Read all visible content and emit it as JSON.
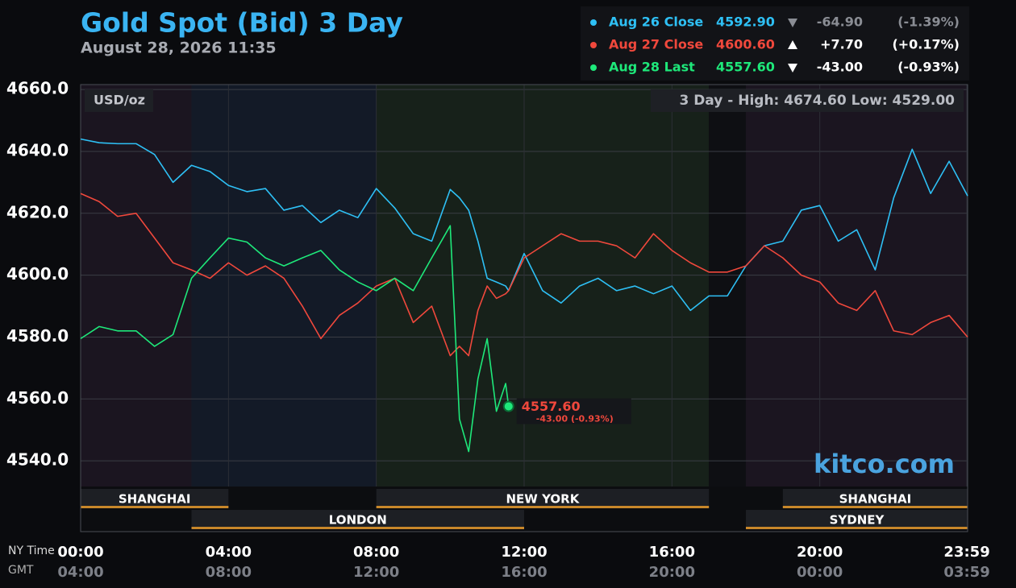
{
  "chart_data": {
    "type": "line",
    "title": "Gold Spot (Bid) 3 Day",
    "subtitle": "August 28, 2026 11:35",
    "unit_label": "USD/oz",
    "range_label": "3 Day - High: 4674.60  Low: 4529.00",
    "brand": "kitco.com",
    "x_label": "NY Time",
    "x2_label": "GMT",
    "x": [
      0,
      0.5,
      1,
      1.5,
      2,
      2.5,
      3,
      3.5,
      4,
      4.5,
      5,
      5.5,
      6,
      6.5,
      7,
      7.5,
      8,
      8.5,
      9,
      9.5,
      10,
      10.25,
      10.5,
      10.75,
      11,
      11.25,
      11.5,
      11.58,
      12,
      12.5,
      13,
      13.5,
      14,
      14.5,
      15,
      15.5,
      16,
      16.5,
      17,
      17.5,
      18,
      18.5,
      19,
      19.5,
      20,
      20.5,
      21,
      21.5,
      22,
      22.5,
      23,
      23.5,
      24
    ],
    "xlim": [
      0,
      24
    ],
    "xticks": [
      {
        "value": 0,
        "label": "00:00"
      },
      {
        "value": 4,
        "label": "04:00"
      },
      {
        "value": 8,
        "label": "08:00"
      },
      {
        "value": 12,
        "label": "12:00"
      },
      {
        "value": 16,
        "label": "16:00"
      },
      {
        "value": 20,
        "label": "20:00"
      },
      {
        "value": 23.98,
        "label": "23:59"
      }
    ],
    "gmt_labels": [
      "04:00",
      "08:00",
      "12:00",
      "16:00",
      "20:00",
      "00:00",
      "03:59"
    ],
    "ylim": [
      4531.7,
      4661.6
    ],
    "yticks": [
      {
        "value": 4540,
        "label": "4540.0"
      },
      {
        "value": 4560,
        "label": "4560.0"
      },
      {
        "value": 4580,
        "label": "4580.0"
      },
      {
        "value": 4600,
        "label": "4600.0"
      },
      {
        "value": 4620,
        "label": "4620.0"
      },
      {
        "value": 4640,
        "label": "4640.0"
      },
      {
        "value": 4660,
        "label": "4660.0"
      }
    ],
    "grid": true,
    "zones": [
      {
        "start": 0,
        "end": 3,
        "color": "#1b1520"
      },
      {
        "start": 3,
        "end": 8,
        "color": "#131a27"
      },
      {
        "start": 8,
        "end": 17,
        "color": "#17211a"
      },
      {
        "start": 17,
        "end": 18,
        "color": "#0e0f13"
      },
      {
        "start": 18,
        "end": 24,
        "color": "#1b1520"
      }
    ],
    "sessions_top": [
      {
        "name": "SHANGHAI",
        "start": 0,
        "end": 4
      },
      {
        "name": "NEW YORK",
        "start": 8,
        "end": 17
      },
      {
        "name": "SHANGHAI",
        "start": 19,
        "end": 24
      }
    ],
    "sessions_bottom": [
      {
        "name": "LONDON",
        "start": 3,
        "end": 12
      },
      {
        "name": "SYDNEY",
        "start": 18,
        "end": 24
      }
    ],
    "series": [
      {
        "name": "Aug 26 Close",
        "color": "#2ec0f5",
        "price": "4592.90",
        "change": "-64.90",
        "percent": "(-1.39%)",
        "values": [
          4644,
          4642.8,
          4642.5,
          4642.5,
          4639,
          4630,
          4635.5,
          4633.5,
          4629,
          4627,
          4628,
          4621,
          4622.5,
          4617,
          4621,
          4618.6,
          4628,
          4621.7,
          4613.4,
          4611,
          4627.7,
          4625,
          4621,
          4611,
          4599,
          4597.8,
          4596.5,
          4595,
          4607,
          4595,
          4591,
          4596.5,
          4599,
          4595,
          4596.5,
          4594,
          4596.5,
          4588.6,
          4593.3,
          4593.3,
          4603,
          4609.5,
          4611,
          4621,
          4622.5,
          4611,
          4614.7,
          4601.7,
          4625,
          4640.7,
          4626.4,
          4636.8,
          4625.6
        ]
      },
      {
        "name": "Aug 27 Close",
        "color": "#f0483c",
        "price": "4600.60",
        "change": "+7.70",
        "percent": "(+0.17%)",
        "values": [
          4626.4,
          4623.8,
          4619,
          4620,
          4612,
          4604,
          4601.7,
          4599,
          4604,
          4600,
          4603,
          4599,
          4590,
          4579.5,
          4587,
          4591,
          4596.5,
          4599,
          4584.7,
          4590,
          4574,
          4577,
          4574,
          4588.6,
          4596.5,
          4592.5,
          4594,
          4595,
          4605.6,
          4609.5,
          4613.4,
          4611,
          4611,
          4609.5,
          4605.6,
          4613.4,
          4608,
          4604,
          4601,
          4601,
          4603,
          4609.5,
          4605.6,
          4600,
          4597.8,
          4591,
          4588.6,
          4595,
          4582,
          4580.8,
          4584.7,
          4587,
          4580
        ]
      },
      {
        "name": "Aug 28 Last",
        "color": "#1ee87a",
        "price": "4557.60",
        "change": "-43.00",
        "percent": "(-0.93%)",
        "end_label": "4557.60",
        "end_change": "-43.00 (-0.93%)",
        "values": [
          4579.5,
          4583.4,
          4582,
          4582,
          4577,
          4580.8,
          4599,
          4605.6,
          4612,
          4610.7,
          4605.6,
          4603,
          4605.6,
          4608,
          4601.7,
          4597.8,
          4595,
          4599,
          4595,
          4605.6,
          4616,
          4553.5,
          4543,
          4566.5,
          4579.5,
          4556,
          4565,
          4557.6,
          null,
          null,
          null,
          null,
          null,
          null,
          null,
          null,
          null,
          null,
          null,
          null,
          null,
          null,
          null,
          null,
          null,
          null,
          null,
          null,
          null,
          null,
          null,
          null,
          null
        ]
      }
    ]
  }
}
